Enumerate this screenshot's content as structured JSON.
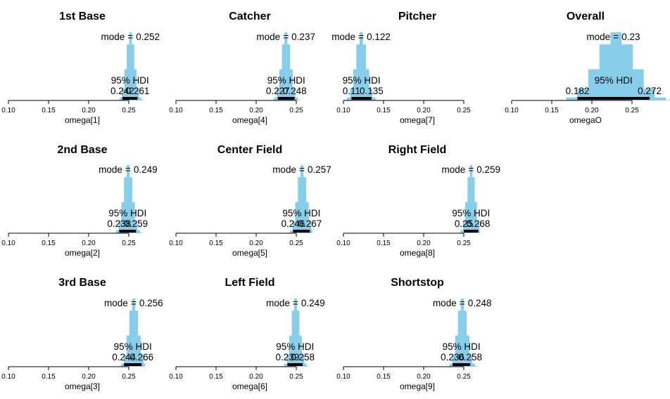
{
  "figure": {
    "mode_prefix": "mode",
    "hdi_label": "95% HDI",
    "bar_color": "#87CEEB",
    "hdi_color": "#000000"
  },
  "chart_data": [
    {
      "type": "histogram",
      "title": "1st Base",
      "xlabel": "omega[1]",
      "xlim": [
        0.1,
        0.27
      ],
      "x_ticks": [
        "0.10",
        "0.15",
        "0.20",
        "0.25"
      ],
      "mode": "0.252",
      "hdi_low": "0.242",
      "hdi_high": "0.261",
      "mode_value": 0.252,
      "spread": 0.0048
    },
    {
      "type": "histogram",
      "title": "Catcher",
      "xlabel": "omega[4]",
      "xlim": [
        0.1,
        0.27
      ],
      "x_ticks": [
        "0.10",
        "0.15",
        "0.20",
        "0.25"
      ],
      "mode": "0.237",
      "hdi_low": "0.227",
      "hdi_high": "0.248",
      "mode_value": 0.237,
      "spread": 0.0053
    },
    {
      "type": "histogram",
      "title": "Pitcher",
      "xlabel": "omega[7]",
      "xlim": [
        0.1,
        0.27
      ],
      "x_ticks": [
        "0.10",
        "0.15",
        "0.20",
        "0.25"
      ],
      "mode": "0.122",
      "hdi_low": "0.11",
      "hdi_high": "0.135",
      "mode_value": 0.122,
      "spread": 0.0063
    },
    {
      "type": "histogram",
      "title": "Overall",
      "xlabel": "omegaO",
      "xlim": [
        0.0,
        0.3
      ],
      "x_ticks": [
        "0.10",
        "0.15",
        "0.20",
        "0.25"
      ],
      "mode": "0.23",
      "hdi_low": "0.182",
      "hdi_high": "0.272",
      "mode_value": 0.23,
      "spread": 0.022
    },
    {
      "type": "histogram",
      "title": "2nd Base",
      "xlabel": "omega[2]",
      "xlim": [
        0.1,
        0.27
      ],
      "x_ticks": [
        "0.10",
        "0.15",
        "0.20",
        "0.25"
      ],
      "mode": "0.249",
      "hdi_low": "0.238",
      "hdi_high": "0.259",
      "mode_value": 0.249,
      "spread": 0.0053
    },
    {
      "type": "histogram",
      "title": "Center Field",
      "xlabel": "omega[5]",
      "xlim": [
        0.1,
        0.27
      ],
      "x_ticks": [
        "0.10",
        "0.15",
        "0.20",
        "0.25"
      ],
      "mode": "0.257",
      "hdi_low": "0.246",
      "hdi_high": "0.267",
      "mode_value": 0.257,
      "spread": 0.0053
    },
    {
      "type": "histogram",
      "title": "Right Field",
      "xlabel": "omega[8]",
      "xlim": [
        0.1,
        0.27
      ],
      "x_ticks": [
        "0.10",
        "0.15",
        "0.20",
        "0.25"
      ],
      "mode": "0.259",
      "hdi_low": "0.25",
      "hdi_high": "0.268",
      "mode_value": 0.259,
      "spread": 0.0046
    },
    {
      "type": "histogram",
      "title": "3rd Base",
      "xlabel": "omega[3]",
      "xlim": [
        0.1,
        0.27
      ],
      "x_ticks": [
        "0.10",
        "0.15",
        "0.20",
        "0.25"
      ],
      "mode": "0.256",
      "hdi_low": "0.244",
      "hdi_high": "0.266",
      "mode_value": 0.256,
      "spread": 0.0056
    },
    {
      "type": "histogram",
      "title": "Left Field",
      "xlabel": "omega[6]",
      "xlim": [
        0.1,
        0.27
      ],
      "x_ticks": [
        "0.10",
        "0.15",
        "0.20",
        "0.25"
      ],
      "mode": "0.249",
      "hdi_low": "0.239",
      "hdi_high": "0.258",
      "mode_value": 0.249,
      "spread": 0.0049
    },
    {
      "type": "histogram",
      "title": "Shortstop",
      "xlabel": "omega[9]",
      "xlim": [
        0.1,
        0.27
      ],
      "x_ticks": [
        "0.10",
        "0.15",
        "0.20",
        "0.25"
      ],
      "mode": "0.248",
      "hdi_low": "0.236",
      "hdi_high": "0.258",
      "mode_value": 0.248,
      "spread": 0.0056
    }
  ]
}
